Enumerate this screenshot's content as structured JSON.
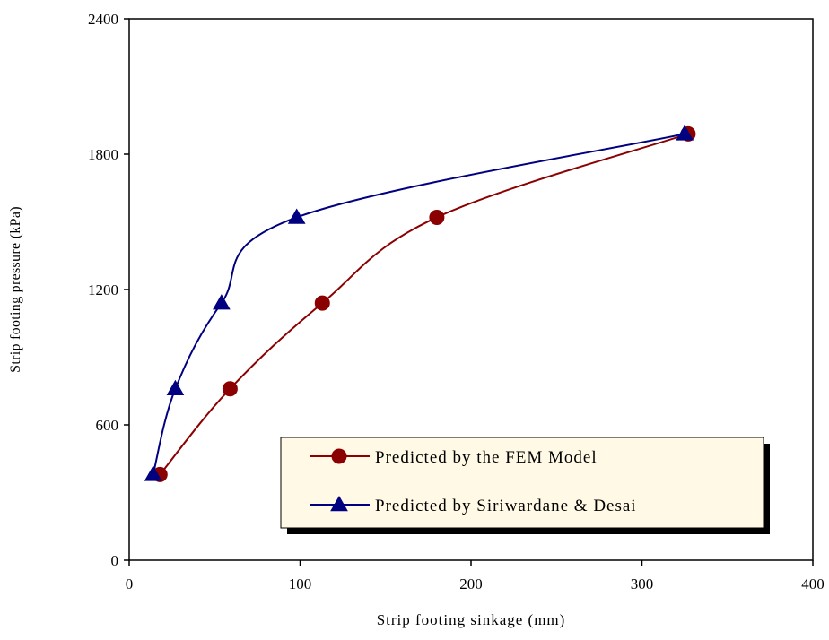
{
  "chart_data": {
    "type": "line",
    "title": "",
    "xlabel": "Strip footing sinkage (mm)",
    "ylabel": "Strip footing pressure (kPa)",
    "xlim": [
      0,
      400
    ],
    "ylim": [
      0,
      2400
    ],
    "x_ticks": [
      "0",
      "100",
      "200",
      "300",
      "400"
    ],
    "y_ticks": [
      "0",
      "600",
      "1200",
      "1800",
      "2400"
    ],
    "grid": false,
    "legend_position": "bottom-right",
    "series": [
      {
        "name": "Predicted by the FEM Model",
        "color": "#8B0000",
        "marker": "circle",
        "x": [
          18,
          59,
          113,
          180,
          327
        ],
        "y": [
          380,
          760,
          1140,
          1520,
          1890
        ]
      },
      {
        "name": "Predicted by Siriwardane & Desai",
        "color": "#000080",
        "marker": "triangle",
        "x": [
          14,
          27,
          54,
          98,
          325
        ],
        "y": [
          380,
          760,
          1140,
          1520,
          1890
        ]
      }
    ]
  }
}
